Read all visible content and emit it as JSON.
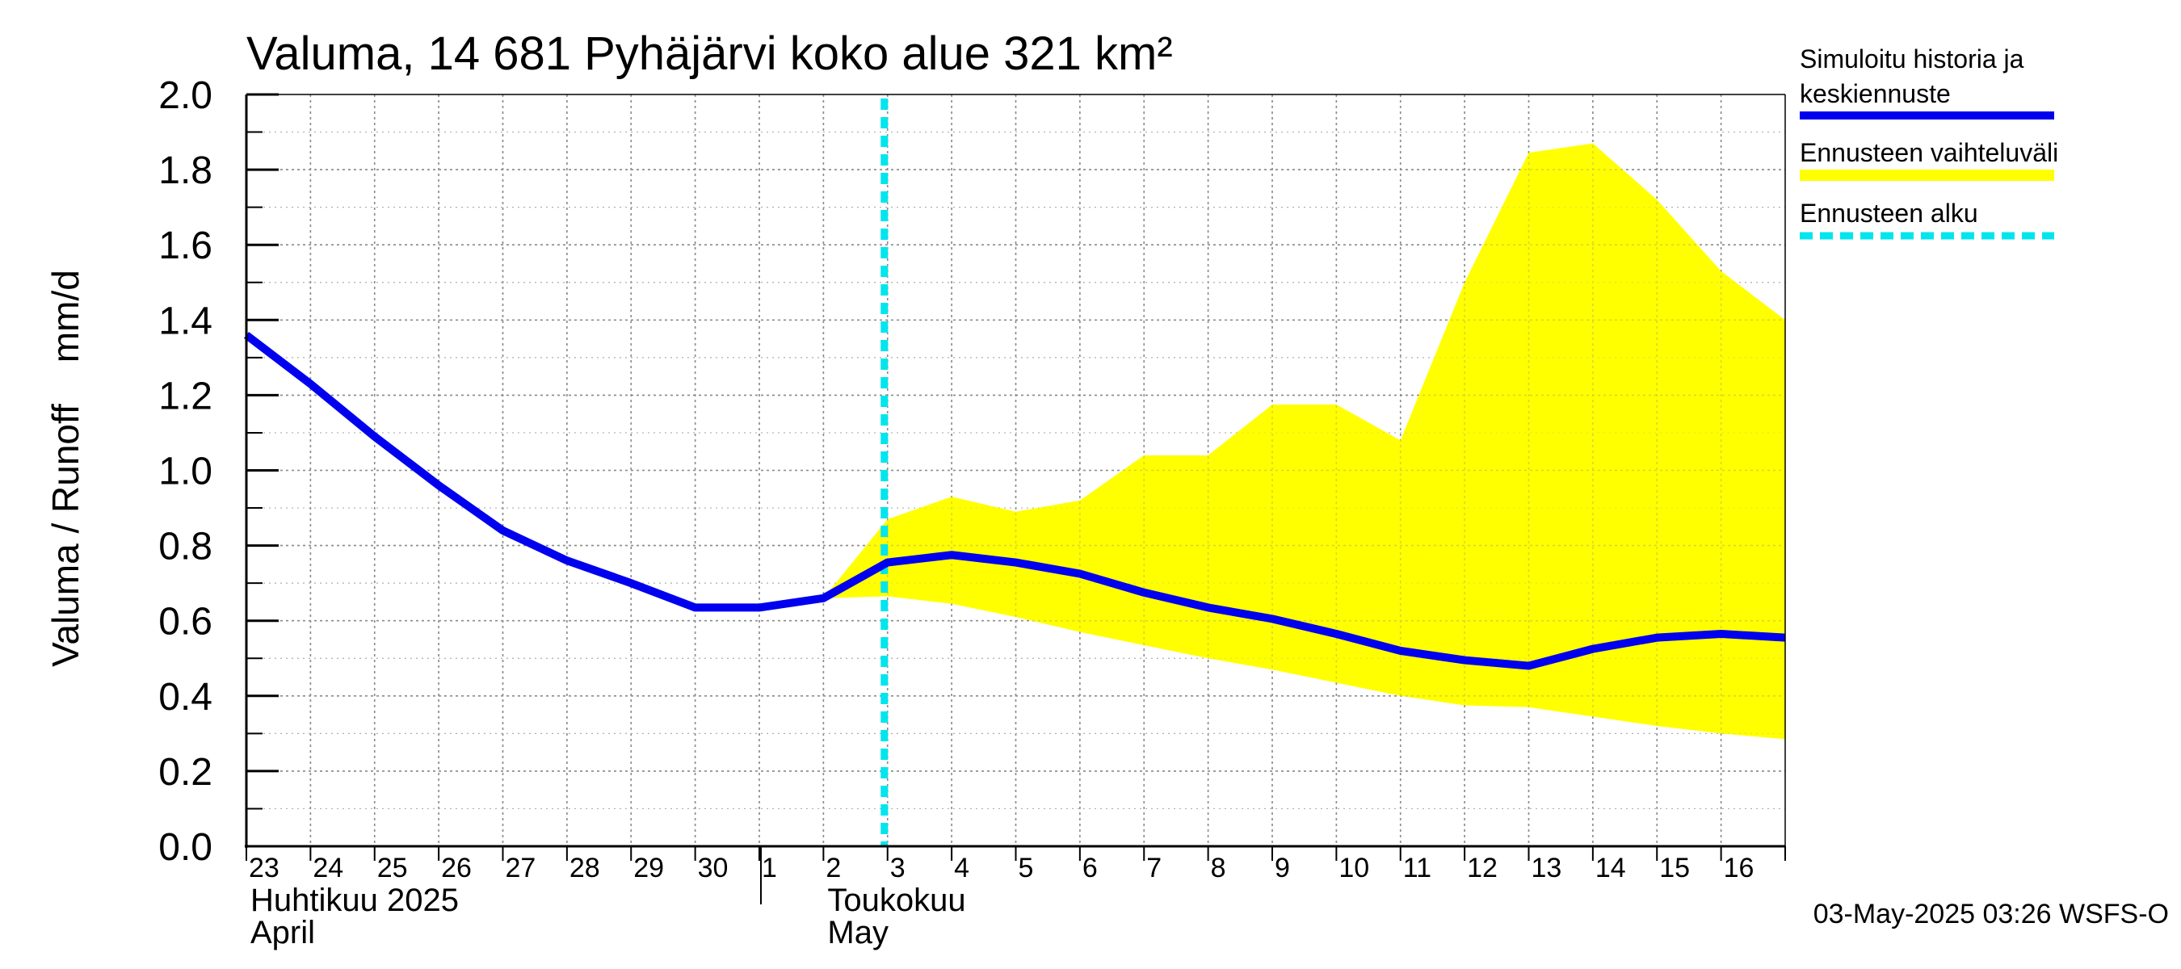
{
  "chart_data": {
    "type": "line",
    "title": "Valuma, 14 681 Pyhäjärvi koko alue 321 km²",
    "ylabel": "Valuma / Runoff    mm/d",
    "ylim": [
      0,
      2.0
    ],
    "yticks": [
      "0.0",
      "0.2",
      "0.4",
      "0.6",
      "0.8",
      "1.0",
      "1.2",
      "1.4",
      "1.6",
      "1.8",
      "2.0"
    ],
    "x_start_day_index": 0,
    "x_end_day_index": 24,
    "day_labels": [
      "23",
      "24",
      "25",
      "26",
      "27",
      "28",
      "29",
      "30",
      "1",
      "2",
      "3",
      "4",
      "5",
      "6",
      "7",
      "8",
      "9",
      "10",
      "11",
      "12",
      "13",
      "14",
      "15",
      "16"
    ],
    "month_labels": [
      {
        "fi": "Huhtikuu  2025",
        "en": "April",
        "day_index": 0
      },
      {
        "fi": "Toukokuu",
        "en": "May",
        "day_index": 9
      }
    ],
    "month_separator_day_index": 8,
    "forecast_start_day_index": 10,
    "series": [
      {
        "name": "Simuloitu historia ja keskiennuste",
        "color": "#0000ee",
        "x": [
          0,
          1,
          2,
          3,
          4,
          5,
          6,
          7,
          8,
          9,
          10,
          11,
          12,
          13,
          14,
          15,
          16,
          17,
          18,
          19,
          20,
          21,
          22,
          23,
          24
        ],
        "values": [
          1.36,
          1.23,
          1.09,
          0.96,
          0.84,
          0.76,
          0.7,
          0.635,
          0.635,
          0.66,
          0.755,
          0.775,
          0.755,
          0.725,
          0.675,
          0.635,
          0.605,
          0.565,
          0.52,
          0.495,
          0.48,
          0.525,
          0.555,
          0.565,
          0.555
        ]
      },
      {
        "name": "Ennusteen vaihteluväli",
        "color": "#ffff00",
        "x": [
          9,
          10,
          11,
          12,
          13,
          14,
          15,
          16,
          17,
          18,
          19,
          20,
          21,
          22,
          23,
          24
        ],
        "upper": [
          0.66,
          0.87,
          0.93,
          0.89,
          0.92,
          1.04,
          1.04,
          1.175,
          1.175,
          1.08,
          1.5,
          1.845,
          1.87,
          1.72,
          1.53,
          1.4
        ],
        "lower": [
          0.66,
          0.665,
          0.645,
          0.61,
          0.57,
          0.535,
          0.5,
          0.47,
          0.435,
          0.4,
          0.375,
          0.37,
          0.345,
          0.32,
          0.3,
          0.285
        ]
      },
      {
        "name": "Ennusteen alku",
        "color": "#00e5ee",
        "style": "dashed"
      }
    ],
    "legend": [
      {
        "label": "Simuloitu historia ja keskiennuste",
        "color": "#0000ee",
        "style": "solid"
      },
      {
        "label": "Ennusteen vaihteluväli",
        "color": "#ffff00",
        "style": "band"
      },
      {
        "label": "Ennusteen alku",
        "color": "#00e5ee",
        "style": "dashed"
      }
    ],
    "legend_position": "top-right",
    "grid": true,
    "footer": "03-May-2025 03:26 WSFS-O"
  }
}
